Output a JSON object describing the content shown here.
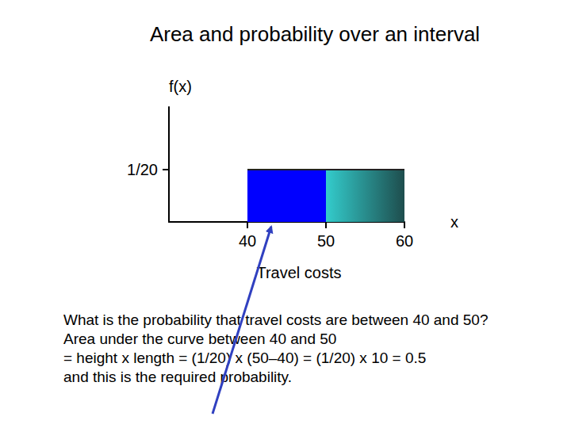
{
  "title": "Area and probability over an interval",
  "chart_data": {
    "type": "area",
    "y_label": "f(x)",
    "x_label": "x",
    "annotation": "Travel costs",
    "xlim": [
      30,
      60
    ],
    "xticks": [
      40,
      50,
      60
    ],
    "ylim": [
      0,
      0.11
    ],
    "yticks": [
      {
        "value": 0.05,
        "label": "1/20"
      }
    ],
    "series": [
      {
        "color": "#0000ff",
        "x": [
          40,
          50
        ],
        "values": [
          0.05,
          0.05
        ]
      },
      {
        "color": "#33cccc",
        "x": [
          50,
          60
        ],
        "values": [
          0.05,
          0.05
        ]
      }
    ],
    "grid": false
  },
  "text": {
    "lines": [
      "What is the probability that travel costs are between 40 and 50?",
      "Area under the curve between 40 and 50",
      "= height x length = (1/20) x (50–40) = (1/20) x 10 = 0.5",
      "and this is the required probability."
    ]
  }
}
